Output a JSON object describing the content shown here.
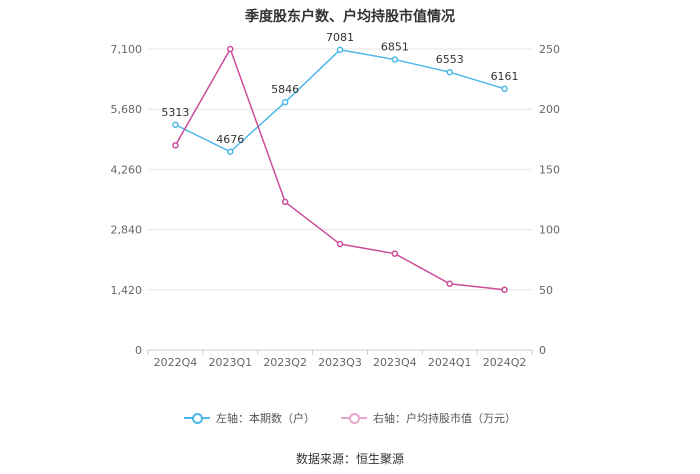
{
  "title": "季度股东户数、户均持股市值情况",
  "source_label": "数据来源：恒生聚源",
  "colors": {
    "left_series": "#4db8e8",
    "right_series": "#cc4d9a",
    "grid": "#e6e6e6",
    "axis_text": "#666666",
    "label_text": "#333333"
  },
  "chart_data": {
    "type": "line",
    "categories": [
      "2022Q4",
      "2023Q1",
      "2023Q2",
      "2023Q3",
      "2023Q4",
      "2024Q1",
      "2024Q2"
    ],
    "y_left": {
      "ticks": [
        "0",
        "1,420",
        "2,840",
        "4,260",
        "5,680",
        "7,100"
      ],
      "ylim": [
        0,
        7100
      ]
    },
    "y_right": {
      "ticks": [
        "0",
        "50",
        "100",
        "150",
        "200",
        "250"
      ],
      "ylim": [
        0,
        250
      ]
    },
    "series": [
      {
        "name": "左轴：本期数（户）",
        "axis": "left",
        "values": [
          5313,
          4676,
          5846,
          7081,
          6851,
          6553,
          6161
        ],
        "labels": [
          "5313",
          "4676",
          "5846",
          "7081",
          "6851",
          "6553",
          "6161"
        ]
      },
      {
        "name": "右轴：户均持股市值（万元）",
        "axis": "right",
        "values": [
          170,
          250,
          123,
          88,
          80,
          55,
          50
        ]
      }
    ],
    "grid": true,
    "legend_position": "bottom"
  }
}
